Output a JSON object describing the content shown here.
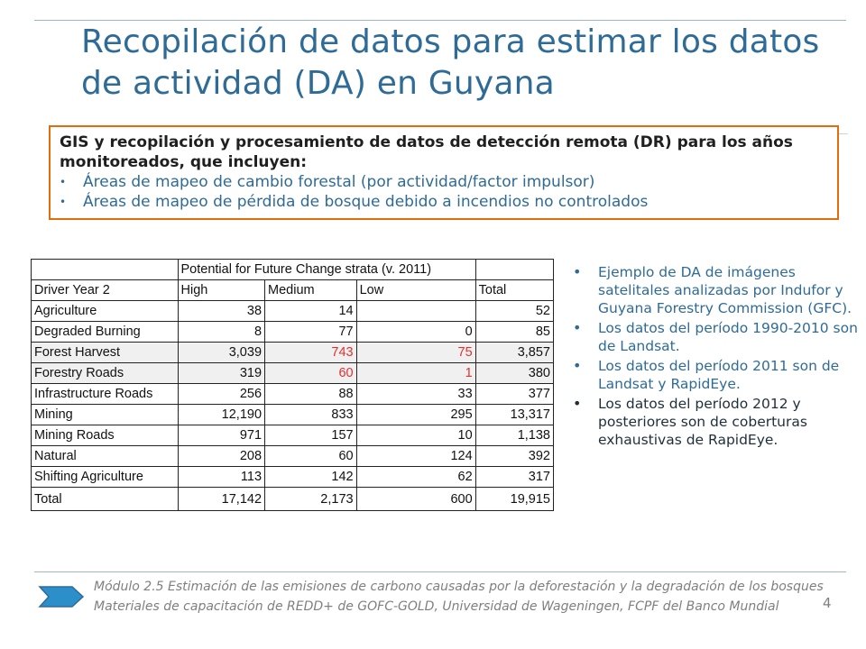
{
  "title": "Recopilación de datos para estimar los datos de actividad (DA) en Guyana",
  "callout": {
    "heading": "GIS y recopilación y procesamiento de datos de detección remota (DR) para los años monitoreados, que incluyen:",
    "bullet_char": "•",
    "items": [
      "Áreas de mapeo de cambio forestal (por actividad/factor impulsor)",
      "Áreas de mapeo de pérdida de bosque debido a incendios no controlados"
    ]
  },
  "table": {
    "group_header": "Potential for Future Change strata (v. 2011)",
    "headers": [
      "Driver Year 2",
      "High",
      "Medium",
      "Low",
      "Total"
    ],
    "rows": [
      [
        "Agriculture",
        "38",
        "14",
        "",
        "52"
      ],
      [
        "Degraded Burning",
        "8",
        "77",
        "0",
        "85"
      ],
      [
        "Forest Harvest",
        "3,039",
        "743",
        "75",
        "3,857"
      ],
      [
        "Forestry Roads",
        "319",
        "60",
        "1",
        "380"
      ],
      [
        "Infrastructure Roads",
        "256",
        "88",
        "33",
        "377"
      ],
      [
        "Mining",
        "12,190",
        "833",
        "295",
        "13,317"
      ],
      [
        "Mining Roads",
        "971",
        "157",
        "10",
        "1,138"
      ],
      [
        "Natural",
        "208",
        "60",
        "124",
        "392"
      ],
      [
        "Shifting Agriculture",
        "113",
        "142",
        "62",
        "317"
      ],
      [
        "Total",
        "17,142",
        "2,173",
        "600",
        "19,915"
      ]
    ],
    "highlight_color": "#e03030"
  },
  "side_notes": {
    "bullet_char": "•",
    "items": [
      "Ejemplo de DA de imágenes satelitales analizadas por Indufor y Guyana Forestry Commission (GFC).",
      "Los datos del período 1990-2010 son de Landsat.",
      "Los datos del período 2011 son de Landsat y RapidEye.",
      "Los datos del período 2012 y posteriores son de coberturas exhaustivas de RapidEye."
    ]
  },
  "footer": {
    "line1": "Módulo 2.5 Estimación de las emisiones de carbono causadas por la deforestación y la degradación de los bosques",
    "line2": "Materiales de capacitación de REDD+ de GOFC-GOLD, Universidad de Wageningen, FCPF del Banco Mundial",
    "icon": "chevron-arrow-icon",
    "page_number": "4"
  },
  "colors": {
    "title": "#2e6b97",
    "callout_border": "#e46c0a",
    "footer_text": "#7f7f7f"
  }
}
